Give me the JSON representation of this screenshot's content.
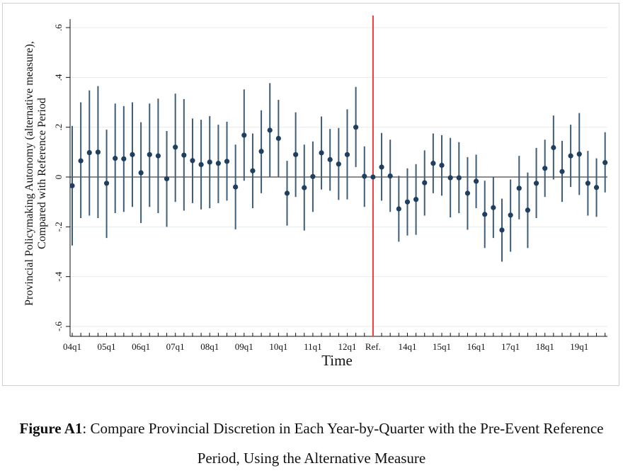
{
  "colors": {
    "marker": "#1f3f5f",
    "ci_line": "#3d5d79",
    "zero_line": "#1a1a1a",
    "reference_line": "#e83b3b",
    "grid": "#e6ecef",
    "axis": "#111111"
  },
  "caption": {
    "label": "Figure A1",
    "text": ": Compare Provincial Discretion in Each Year-by-Quarter with the Pre-Event Reference Period, Using the Alternative Measure"
  },
  "chart_data": {
    "type": "scatter",
    "variant": "coefficient plot with 95% confidence intervals",
    "xlabel": "Time",
    "ylabel_lines": [
      "Provincial Policymaking Autonomy (alternative measure),",
      "Compared with Reference Period"
    ],
    "ylim": [
      -0.6,
      0.6
    ],
    "yticks": [
      -0.6,
      -0.4,
      -0.2,
      0,
      0.2,
      0.4,
      0.6
    ],
    "ytick_labels": [
      "-.6",
      "-.4",
      "-.2",
      "0",
      ".2",
      ".4",
      ".6"
    ],
    "grid": true,
    "x_tick_labels": [
      {
        "index": 0,
        "label": "04q1"
      },
      {
        "index": 4,
        "label": "05q1"
      },
      {
        "index": 8,
        "label": "06q1"
      },
      {
        "index": 12,
        "label": "07q1"
      },
      {
        "index": 16,
        "label": "08q1"
      },
      {
        "index": 20,
        "label": "09q1"
      },
      {
        "index": 24,
        "label": "10q1"
      },
      {
        "index": 28,
        "label": "11q1"
      },
      {
        "index": 32,
        "label": "12q1"
      },
      {
        "index": 35,
        "label": "Ref."
      },
      {
        "index": 39,
        "label": "14q1"
      },
      {
        "index": 43,
        "label": "15q1"
      },
      {
        "index": 47,
        "label": "16q1"
      },
      {
        "index": 51,
        "label": "17q1"
      },
      {
        "index": 55,
        "label": "18q1"
      },
      {
        "index": 59,
        "label": "19q1"
      }
    ],
    "reference_index": 35,
    "points": [
      {
        "est": -0.035,
        "lo": -0.275,
        "hi": 0.205
      },
      {
        "est": 0.065,
        "lo": -0.165,
        "hi": 0.3
      },
      {
        "est": 0.098,
        "lo": -0.155,
        "hi": 0.348
      },
      {
        "est": 0.1,
        "lo": -0.165,
        "hi": 0.365
      },
      {
        "est": -0.025,
        "lo": -0.245,
        "hi": 0.19
      },
      {
        "est": 0.075,
        "lo": -0.145,
        "hi": 0.295
      },
      {
        "est": 0.073,
        "lo": -0.14,
        "hi": 0.285
      },
      {
        "est": 0.09,
        "lo": -0.12,
        "hi": 0.3
      },
      {
        "est": 0.017,
        "lo": -0.185,
        "hi": 0.22
      },
      {
        "est": 0.09,
        "lo": -0.12,
        "hi": 0.295
      },
      {
        "est": 0.085,
        "lo": -0.145,
        "hi": 0.315
      },
      {
        "est": -0.007,
        "lo": -0.2,
        "hi": 0.185
      },
      {
        "est": 0.12,
        "lo": -0.1,
        "hi": 0.335
      },
      {
        "est": 0.088,
        "lo": -0.135,
        "hi": 0.313
      },
      {
        "est": 0.066,
        "lo": -0.105,
        "hi": 0.235
      },
      {
        "est": 0.05,
        "lo": -0.13,
        "hi": 0.23
      },
      {
        "est": 0.06,
        "lo": -0.125,
        "hi": 0.245
      },
      {
        "est": 0.055,
        "lo": -0.105,
        "hi": 0.21
      },
      {
        "est": 0.063,
        "lo": -0.095,
        "hi": 0.222
      },
      {
        "est": -0.04,
        "lo": -0.21,
        "hi": 0.13
      },
      {
        "est": 0.168,
        "lo": -0.015,
        "hi": 0.352
      },
      {
        "est": 0.025,
        "lo": -0.125,
        "hi": 0.175
      },
      {
        "est": 0.103,
        "lo": -0.065,
        "hi": 0.268
      },
      {
        "est": 0.188,
        "lo": 0.0,
        "hi": 0.377
      },
      {
        "est": 0.155,
        "lo": 0.0,
        "hi": 0.31
      },
      {
        "est": -0.065,
        "lo": -0.195,
        "hi": 0.065
      },
      {
        "est": 0.09,
        "lo": -0.08,
        "hi": 0.26
      },
      {
        "est": -0.043,
        "lo": -0.215,
        "hi": 0.13
      },
      {
        "est": 0.002,
        "lo": -0.14,
        "hi": 0.143
      },
      {
        "est": 0.097,
        "lo": -0.05,
        "hi": 0.243
      },
      {
        "est": 0.07,
        "lo": -0.055,
        "hi": 0.193
      },
      {
        "est": 0.052,
        "lo": -0.092,
        "hi": 0.197
      },
      {
        "est": 0.09,
        "lo": -0.09,
        "hi": 0.272
      },
      {
        "est": 0.2,
        "lo": 0.04,
        "hi": 0.362
      },
      {
        "est": 0.003,
        "lo": -0.12,
        "hi": 0.123
      },
      {
        "est": 0.0,
        "lo": 0.0,
        "hi": 0.0
      },
      {
        "est": 0.04,
        "lo": -0.095,
        "hi": 0.177
      },
      {
        "est": 0.004,
        "lo": -0.14,
        "hi": 0.15
      },
      {
        "est": -0.128,
        "lo": -0.26,
        "hi": 0.005
      },
      {
        "est": -0.1,
        "lo": -0.235,
        "hi": 0.035
      },
      {
        "est": -0.09,
        "lo": -0.232,
        "hi": 0.052
      },
      {
        "est": -0.023,
        "lo": -0.155,
        "hi": 0.107
      },
      {
        "est": 0.055,
        "lo": -0.065,
        "hi": 0.175
      },
      {
        "est": 0.047,
        "lo": -0.075,
        "hi": 0.168
      },
      {
        "est": -0.003,
        "lo": -0.162,
        "hi": 0.157
      },
      {
        "est": -0.003,
        "lo": -0.145,
        "hi": 0.14
      },
      {
        "est": -0.065,
        "lo": -0.212,
        "hi": 0.08
      },
      {
        "est": -0.017,
        "lo": -0.125,
        "hi": 0.09
      },
      {
        "est": -0.15,
        "lo": -0.285,
        "hi": -0.015
      },
      {
        "est": -0.123,
        "lo": -0.245,
        "hi": 0.0
      },
      {
        "est": -0.213,
        "lo": -0.34,
        "hi": -0.087
      },
      {
        "est": -0.153,
        "lo": -0.3,
        "hi": -0.01
      },
      {
        "est": -0.045,
        "lo": -0.17,
        "hi": 0.085
      },
      {
        "est": -0.133,
        "lo": -0.285,
        "hi": 0.018
      },
      {
        "est": -0.025,
        "lo": -0.165,
        "hi": 0.117
      },
      {
        "est": 0.035,
        "lo": -0.08,
        "hi": 0.15
      },
      {
        "est": 0.118,
        "lo": -0.01,
        "hi": 0.247
      },
      {
        "est": 0.022,
        "lo": -0.1,
        "hi": 0.145
      },
      {
        "est": 0.085,
        "lo": -0.04,
        "hi": 0.21
      },
      {
        "est": 0.092,
        "lo": -0.072,
        "hi": 0.257
      },
      {
        "est": -0.025,
        "lo": -0.155,
        "hi": 0.105
      },
      {
        "est": -0.042,
        "lo": -0.16,
        "hi": 0.075
      },
      {
        "est": 0.058,
        "lo": -0.062,
        "hi": 0.18
      }
    ]
  }
}
